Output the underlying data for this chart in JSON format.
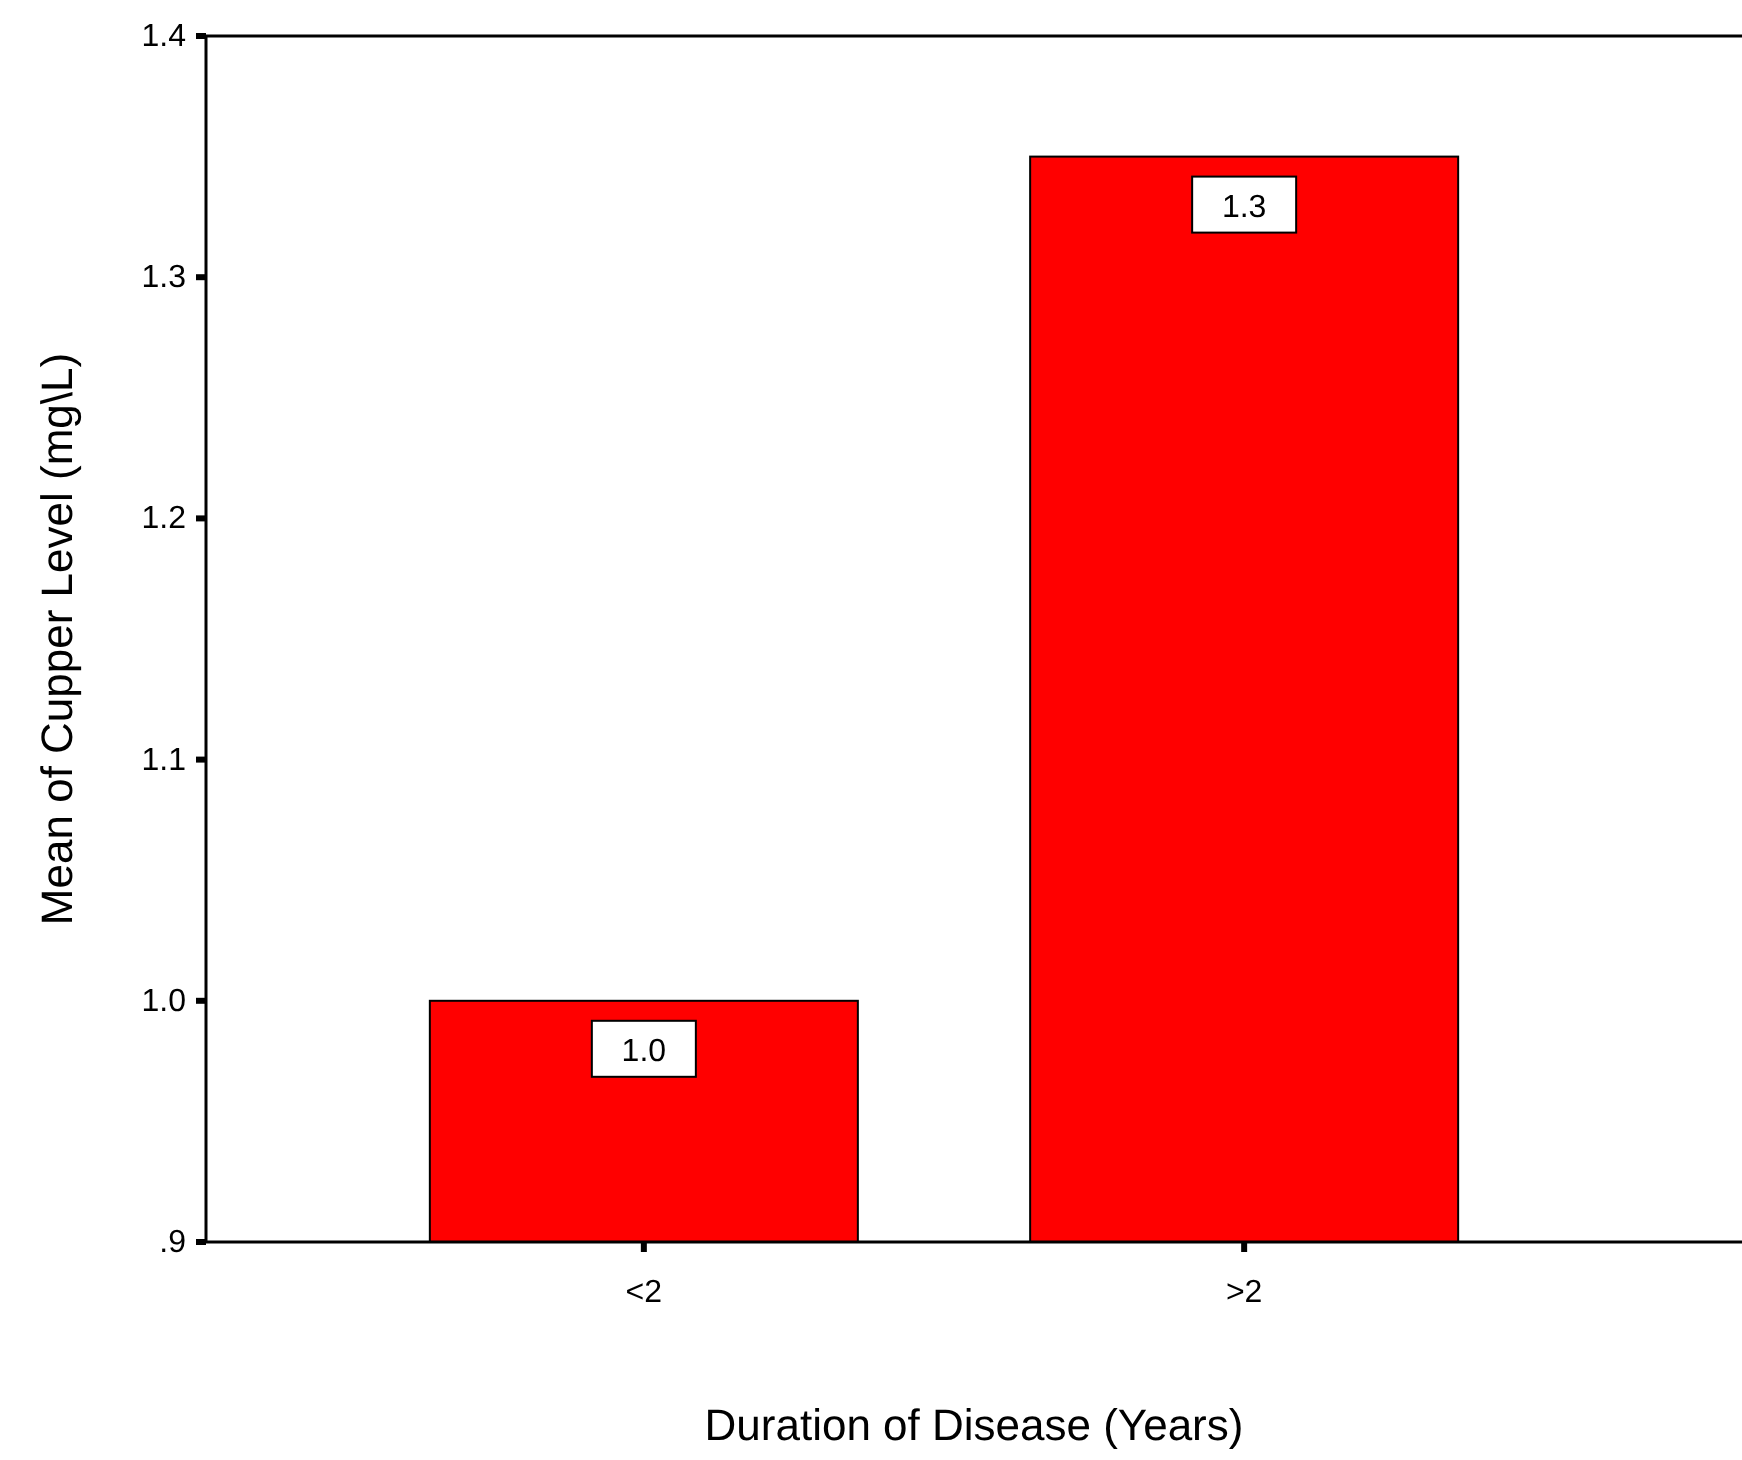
{
  "chart_data": {
    "type": "bar",
    "xlabel": "Duration of Disease (Years)",
    "ylabel": "Mean of Cupper Level (mg\\L)",
    "categories": [
      "<2",
      ">2"
    ],
    "values": [
      1.0,
      1.35
    ],
    "value_labels": [
      "1.0",
      "1.3"
    ],
    "color": "#ff0000",
    "ylim": [
      0.9,
      1.4
    ],
    "yticks": [
      {
        "value": 0.9,
        "label": ".9"
      },
      {
        "value": 1.0,
        "label": "1.0"
      },
      {
        "value": 1.1,
        "label": "1.1"
      },
      {
        "value": 1.2,
        "label": "1.2"
      },
      {
        "value": 1.3,
        "label": "1.3"
      },
      {
        "value": 1.4,
        "label": "1.4"
      }
    ],
    "grid": false
  }
}
